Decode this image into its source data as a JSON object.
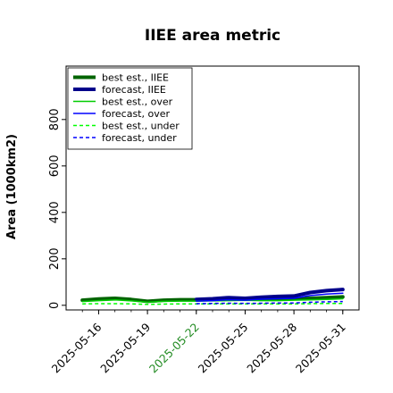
{
  "chart_data": {
    "type": "line",
    "title": "IIEE area metric",
    "xlabel": "",
    "ylabel": "Area (1000km2)",
    "ylim": [
      -20,
      1030
    ],
    "yticks": [
      0,
      200,
      400,
      600,
      800
    ],
    "xlim": [
      "2025-05-14",
      "2025-06-01"
    ],
    "xticks": [
      "2025-05-16",
      "2025-05-19",
      "2025-05-22",
      "2025-05-25",
      "2025-05-28",
      "2025-05-31"
    ],
    "highlight_xtick": "2025-05-22",
    "highlight_color": "#228B22",
    "grid": false,
    "legend_position": "top-left",
    "series": [
      {
        "name": "best est., IIEE",
        "color": "#006400",
        "style": "solid",
        "width": 4,
        "x": [
          "2025-05-15",
          "2025-05-16",
          "2025-05-17",
          "2025-05-18",
          "2025-05-19",
          "2025-05-20",
          "2025-05-21",
          "2025-05-22",
          "2025-05-23",
          "2025-05-24",
          "2025-05-25",
          "2025-05-26",
          "2025-05-27",
          "2025-05-28",
          "2025-05-29",
          "2025-05-30",
          "2025-05-31"
        ],
        "y": [
          22,
          27,
          30,
          25,
          17,
          22,
          24,
          24,
          25,
          26,
          27,
          26,
          26,
          28,
          30,
          33,
          36
        ]
      },
      {
        "name": "forecast, IIEE",
        "color": "#00008B",
        "style": "solid",
        "width": 4,
        "x": [
          "2025-05-22",
          "2025-05-23",
          "2025-05-24",
          "2025-05-25",
          "2025-05-26",
          "2025-05-27",
          "2025-05-28",
          "2025-05-29",
          "2025-05-30",
          "2025-05-31"
        ],
        "y": [
          25,
          28,
          33,
          30,
          35,
          38,
          40,
          55,
          63,
          68
        ]
      },
      {
        "name": "best est., over",
        "color": "#00CC00",
        "style": "solid",
        "width": 1.5,
        "x": [
          "2025-05-15",
          "2025-05-16",
          "2025-05-17",
          "2025-05-18",
          "2025-05-19",
          "2025-05-20",
          "2025-05-21",
          "2025-05-22",
          "2025-05-23",
          "2025-05-24",
          "2025-05-25",
          "2025-05-26",
          "2025-05-27",
          "2025-05-28",
          "2025-05-29",
          "2025-05-30",
          "2025-05-31"
        ],
        "y": [
          16,
          20,
          23,
          19,
          13,
          17,
          18,
          18,
          19,
          20,
          21,
          20,
          20,
          22,
          23,
          25,
          28
        ]
      },
      {
        "name": "forecast, over",
        "color": "#0000FF",
        "style": "solid",
        "width": 1.5,
        "x": [
          "2025-05-22",
          "2025-05-23",
          "2025-05-24",
          "2025-05-25",
          "2025-05-26",
          "2025-05-27",
          "2025-05-28",
          "2025-05-29",
          "2025-05-30",
          "2025-05-31"
        ],
        "y": [
          18,
          20,
          24,
          22,
          26,
          28,
          30,
          42,
          48,
          52
        ]
      },
      {
        "name": "best est., under",
        "color": "#00FF00",
        "style": "dashed",
        "width": 1.5,
        "x": [
          "2025-05-15",
          "2025-05-16",
          "2025-05-17",
          "2025-05-18",
          "2025-05-19",
          "2025-05-20",
          "2025-05-21",
          "2025-05-22",
          "2025-05-23",
          "2025-05-24",
          "2025-05-25",
          "2025-05-26",
          "2025-05-27",
          "2025-05-28",
          "2025-05-29",
          "2025-05-30",
          "2025-05-31"
        ],
        "y": [
          6,
          7,
          7,
          6,
          4,
          5,
          6,
          6,
          6,
          6,
          6,
          6,
          6,
          6,
          7,
          8,
          8
        ]
      },
      {
        "name": "forecast, under",
        "color": "#0000FF",
        "style": "dashed",
        "width": 1.5,
        "x": [
          "2025-05-22",
          "2025-05-23",
          "2025-05-24",
          "2025-05-25",
          "2025-05-26",
          "2025-05-27",
          "2025-05-28",
          "2025-05-29",
          "2025-05-30",
          "2025-05-31"
        ],
        "y": [
          7,
          8,
          9,
          8,
          9,
          10,
          10,
          13,
          15,
          16
        ]
      }
    ]
  }
}
